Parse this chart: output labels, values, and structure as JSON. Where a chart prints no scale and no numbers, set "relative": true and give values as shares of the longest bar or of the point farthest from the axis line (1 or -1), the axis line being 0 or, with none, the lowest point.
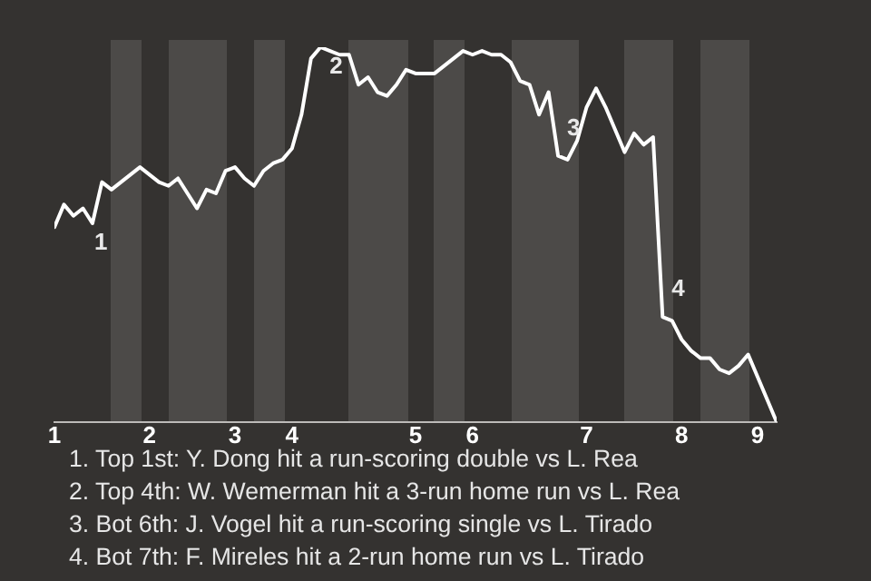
{
  "chart_data": {
    "type": "line",
    "relative": true,
    "legend": false,
    "grid": false,
    "marker": "none",
    "line_style": "solid",
    "categories": [
      "1",
      null,
      null,
      null,
      null,
      null,
      null,
      null,
      null,
      null,
      "2",
      null,
      null,
      null,
      null,
      null,
      null,
      null,
      null,
      "3",
      null,
      null,
      null,
      null,
      null,
      "4",
      null,
      null,
      null,
      null,
      null,
      null,
      null,
      null,
      null,
      null,
      null,
      null,
      "5",
      null,
      null,
      null,
      null,
      null,
      "6",
      null,
      null,
      null,
      null,
      null,
      null,
      null,
      null,
      null,
      null,
      null,
      "7",
      null,
      null,
      null,
      null,
      null,
      null,
      null,
      null,
      null,
      "8",
      null,
      null,
      null,
      null,
      null,
      null,
      null,
      "9",
      null,
      null
    ],
    "series": [
      {
        "color": "#ffffff",
        "values": [
          0.52,
          0.58,
          0.55,
          0.57,
          0.53,
          0.64,
          0.62,
          0.64,
          0.66,
          0.68,
          0.66,
          0.64,
          0.63,
          0.65,
          0.61,
          0.57,
          0.62,
          0.61,
          0.67,
          0.68,
          0.65,
          0.63,
          0.67,
          0.69,
          0.7,
          0.73,
          0.82,
          0.97,
          1,
          0.99,
          0.98,
          0.98,
          0.9,
          0.92,
          0.88,
          0.87,
          0.9,
          0.94,
          0.93,
          0.93,
          0.93,
          0.95,
          0.97,
          0.99,
          0.98,
          0.99,
          0.98,
          0.98,
          0.96,
          0.91,
          0.9,
          0.82,
          0.88,
          0.71,
          0.7,
          0.75,
          0.84,
          0.89,
          0.84,
          0.78,
          0.72,
          0.77,
          0.74,
          0.76,
          0.28,
          0.27,
          0.22,
          0.19,
          0.17,
          0.17,
          0.14,
          0.13,
          0.15,
          0.18,
          0.12,
          0.06,
          0
        ]
      }
    ],
    "annotations": [
      {
        "text": "1",
        "y": 0.53
      },
      {
        "text": "2",
        "y": 1
      },
      {
        "text": "3",
        "y": 0.71
      },
      {
        "text": "4",
        "y": 0.28
      },
      "1. Top 1st: Y. Dong hit a run-scoring double vs L. Rea",
      "2. Top 4th: W. Wemerman hit a 3-run home run vs L. Rea",
      "3. Bot 6th: J. Vogel hit a run-scoring single vs L. Tirado",
      "4. Bot 7th: F. Mireles hit a 2-run home run vs L. Tirado"
    ]
  }
}
